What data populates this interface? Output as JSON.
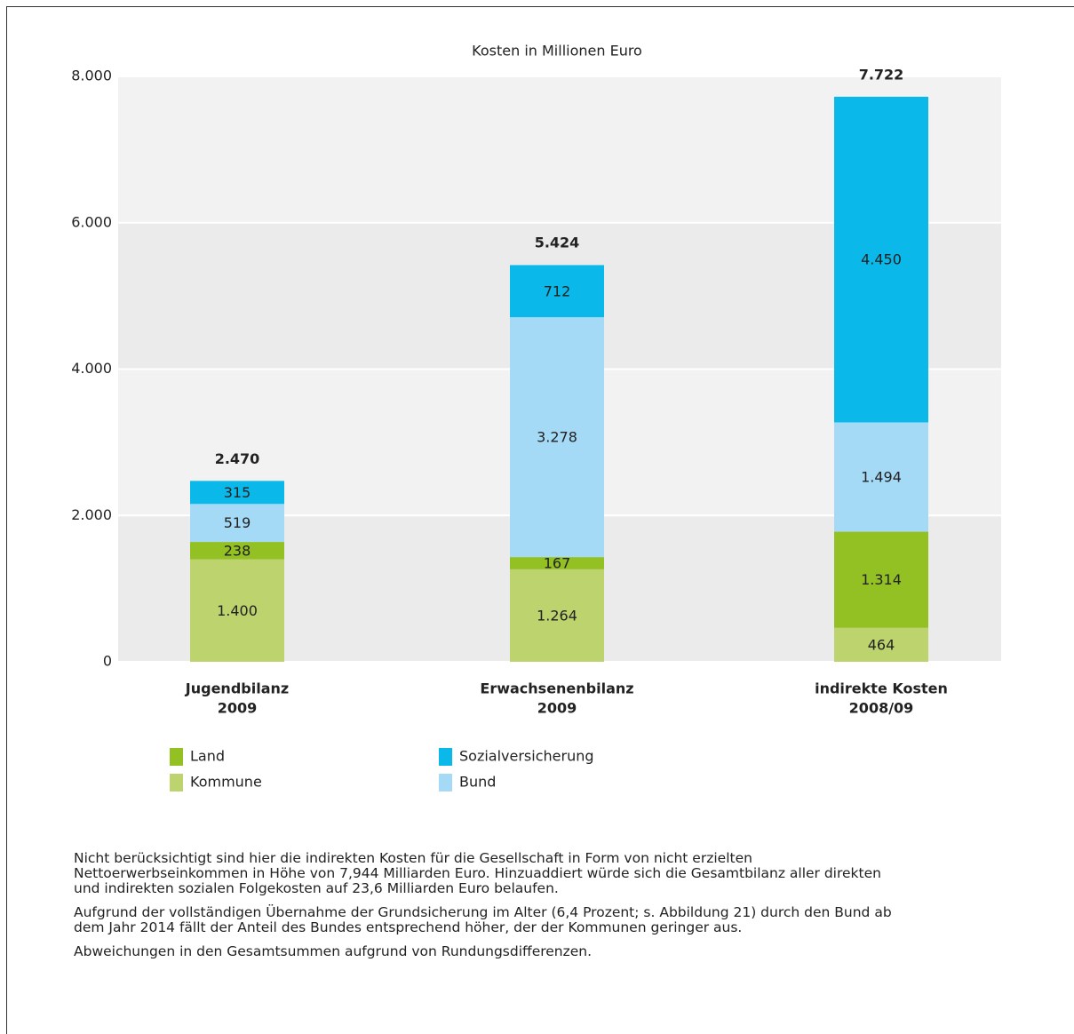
{
  "chart_data": {
    "type": "stacked_bar",
    "title": "Kosten in Millionen Euro",
    "categories": [
      [
        "Jugendbilanz",
        "2009"
      ],
      [
        "Erwachsenenbilanz",
        "2009"
      ],
      [
        "indirekte Kosten",
        "2008/09"
      ]
    ],
    "series": [
      {
        "name": "Kommune",
        "color": "#bcd36e",
        "values": [
          1400,
          1264,
          464
        ],
        "value_labels": [
          "1.400",
          "1.264",
          "464"
        ]
      },
      {
        "name": "Land",
        "color": "#93c023",
        "values": [
          238,
          167,
          1314
        ],
        "value_labels": [
          "238",
          "167",
          "1.314"
        ]
      },
      {
        "name": "Bund",
        "color": "#a5daf7",
        "values": [
          519,
          3278,
          1494
        ],
        "value_labels": [
          "519",
          "3.278",
          "1.494"
        ]
      },
      {
        "name": "Sozialversicherung",
        "color": "#0ab8ea",
        "values": [
          315,
          712,
          4450
        ],
        "value_labels": [
          "315",
          "712",
          "4.450"
        ]
      }
    ],
    "totals": [
      {
        "value": 2470,
        "label": "2.470"
      },
      {
        "value": 5424,
        "label": "5.424"
      },
      {
        "value": 7722,
        "label": "7.722"
      }
    ],
    "ylim": [
      0,
      8000
    ],
    "yticks": [
      0,
      {
        "value": 2000,
        "label": "2.000"
      },
      {
        "value": 4000,
        "label": "4.000"
      },
      {
        "value": 6000,
        "label": "6.000"
      },
      {
        "value": 8000,
        "label": "8.000"
      }
    ],
    "grid": true
  },
  "notes": [
    "Nicht berücksichtigt sind hier die indirekten Kosten für die Gesellschaft in Form von nicht erzielten Nettoerwerbseinkommen in Höhe von 7,944 Milliarden Euro. Hinzuaddiert würde sich die Gesamtbilanz aller direkten und indirekten sozialen Folgekosten auf 23,6 Milliarden Euro belaufen.",
    "Aufgrund der vollständigen Übernahme der Grundsicherung im Alter (6,4 Prozent; s. Abbildung 21) durch den Bund ab dem Jahr 2014 fällt der Anteil des Bundes entsprechend höher, der der Kommunen geringer aus.",
    "Abweichungen in den Gesamtsummen aufgrund von Rundungsdifferenzen."
  ]
}
